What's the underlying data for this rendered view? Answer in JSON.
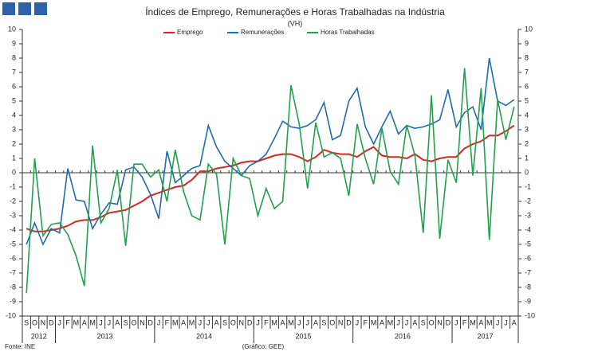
{
  "chart_data": {
    "type": "line",
    "title": "Índices de Emprego, Remunerações e Horas Trabalhadas na Indústria",
    "subtitle": "(VH)",
    "categories": [
      "S",
      "O",
      "N",
      "D",
      "J",
      "F",
      "M",
      "A",
      "M",
      "J",
      "J",
      "A",
      "S",
      "O",
      "N",
      "D",
      "J",
      "F",
      "M",
      "A",
      "M",
      "J",
      "J",
      "A",
      "S",
      "O",
      "N",
      "D",
      "J",
      "F",
      "M",
      "A",
      "M",
      "J",
      "J",
      "A",
      "S",
      "O",
      "N",
      "D",
      "J",
      "F",
      "M",
      "A",
      "M",
      "J",
      "J",
      "A",
      "S",
      "O",
      "N",
      "D",
      "J",
      "F",
      "M",
      "A",
      "M",
      "J",
      "J",
      "A"
    ],
    "year_labels": [
      "2012",
      "2013",
      "2014",
      "2015",
      "2016",
      "2017"
    ],
    "series": [
      {
        "name": "Emprego",
        "color": "#d9261c",
        "values": [
          -3.9,
          -4.1,
          -4.1,
          -4.0,
          -3.9,
          -3.7,
          -3.4,
          -3.3,
          -3.3,
          -3.1,
          -2.8,
          -2.7,
          -2.6,
          -2.3,
          -2.0,
          -1.6,
          -1.4,
          -1.2,
          -1.0,
          -0.9,
          -0.5,
          0.1,
          0.1,
          0.3,
          0.4,
          0.5,
          0.7,
          0.8,
          0.8,
          1.0,
          1.2,
          1.3,
          1.3,
          1.1,
          0.8,
          1.1,
          1.6,
          1.4,
          1.3,
          1.3,
          1.1,
          1.5,
          1.8,
          1.2,
          1.1,
          1.1,
          1.0,
          1.3,
          0.9,
          0.8,
          1.0,
          1.1,
          1.1,
          1.7,
          2.0,
          2.2,
          2.6,
          2.6,
          2.9,
          3.3
        ]
      },
      {
        "name": "Remunerações",
        "color": "#1f6bb0",
        "values": [
          -5.0,
          -3.5,
          -5.0,
          -3.9,
          -4.2,
          0.3,
          -1.9,
          -2.0,
          -3.9,
          -2.9,
          -2.1,
          -2.2,
          0.2,
          0.4,
          -0.3,
          -1.5,
          -3.2,
          1.5,
          -0.7,
          -0.2,
          0.3,
          0.5,
          3.3,
          1.8,
          0.8,
          0.3,
          -0.2,
          0.5,
          0.8,
          1.3,
          2.4,
          3.6,
          3.2,
          3.1,
          3.3,
          3.7,
          4.9,
          2.3,
          2.6,
          5.0,
          5.9,
          3.2,
          2.0,
          3.2,
          4.3,
          2.7,
          3.3,
          3.1,
          3.2,
          3.4,
          3.7,
          5.8,
          3.2,
          4.2,
          4.6,
          3.0,
          8.0,
          5.0,
          4.7,
          5.1
        ]
      },
      {
        "name": "Horas Trabalhadas",
        "color": "#22a04b",
        "values": [
          -8.4,
          1.0,
          -4.4,
          -3.6,
          -3.5,
          -4.3,
          -5.8,
          -7.9,
          1.9,
          -3.5,
          -2.5,
          0.2,
          -5.1,
          0.6,
          0.6,
          -0.3,
          0.2,
          -2.0,
          1.6,
          -1.3,
          -3.0,
          -3.3,
          0.6,
          -0.1,
          -5.0,
          1.0,
          -0.2,
          -0.4,
          -3.0,
          -1.1,
          -2.5,
          -2.0,
          6.1,
          3.4,
          -1.1,
          3.5,
          1.1,
          1.4,
          1.0,
          -1.6,
          3.4,
          1.0,
          -0.8,
          3.1,
          0.1,
          -0.8,
          3.3,
          1.2,
          -4.2,
          5.4,
          -4.6,
          0.9,
          -0.7,
          7.3,
          -0.2,
          5.9,
          -4.7,
          5.1,
          2.3,
          4.6
        ]
      }
    ],
    "ylim": [
      -10,
      10
    ],
    "yticks": [
      -10,
      -9,
      -8,
      -7,
      -6,
      -5,
      -4,
      -3,
      -2,
      -1,
      0,
      1,
      2,
      3,
      4,
      5,
      6,
      7,
      8,
      9,
      10
    ],
    "y2lim": [
      -10,
      10
    ],
    "y2ticks": [
      -10,
      -9,
      -8,
      -7,
      -6,
      -5,
      -4,
      -3,
      -2,
      -1,
      0,
      1,
      2,
      3,
      4,
      5,
      6,
      7,
      8,
      9,
      10
    ],
    "source": "Fonte: INE",
    "credit": "(Gráfico: GEE)"
  }
}
